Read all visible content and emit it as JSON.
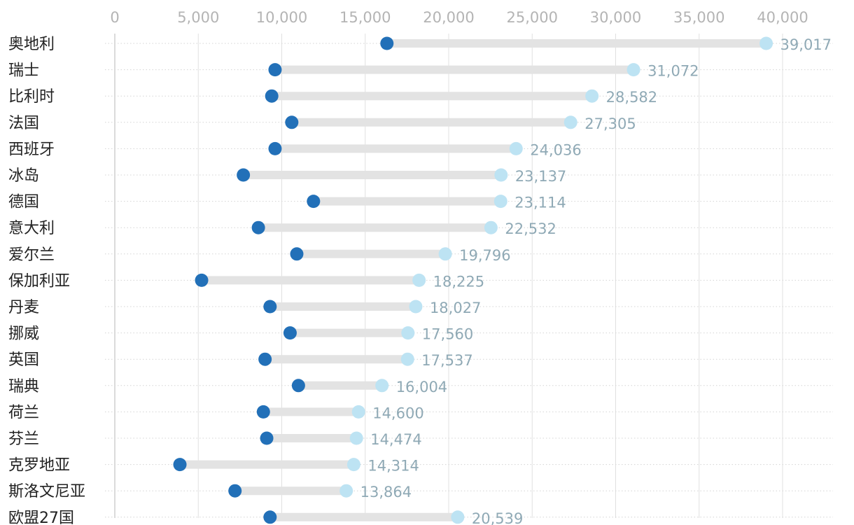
{
  "chart_data": {
    "type": "dumbbell",
    "title": "",
    "xlabel": "",
    "ylabel": "",
    "xlim": [
      0,
      40000
    ],
    "x_ticks": [
      0,
      5000,
      10000,
      15000,
      20000,
      25000,
      30000,
      35000,
      40000
    ],
    "x_tick_labels": [
      "0",
      "5,000",
      "10,000",
      "15,000",
      "20,000",
      "25,000",
      "30,000",
      "35,000",
      "40,000"
    ],
    "grid": true,
    "legend": "none",
    "colors": {
      "start_dot": "#2270b8",
      "end_dot": "#bde3f3",
      "connector": "#e3e3e3",
      "value_label": "#8fa9b5",
      "gridline": "#e0e0e0",
      "row_guide": "#d4d4d4",
      "axis_line": "#cfcfcf",
      "category_label": "#222222",
      "tick_label": "#b4b4b4"
    },
    "series": [
      {
        "name": "start",
        "values": [
          16300,
          9600,
          9400,
          10600,
          9600,
          7700,
          11900,
          8600,
          10900,
          5200,
          9300,
          10500,
          9000,
          11000,
          8900,
          9100,
          3900,
          7200,
          9300
        ]
      },
      {
        "name": "end",
        "values": [
          39017,
          31072,
          28582,
          27305,
          24036,
          23137,
          23114,
          22532,
          19796,
          18225,
          18027,
          17560,
          17537,
          16004,
          14600,
          14474,
          14314,
          13864,
          20539
        ]
      }
    ],
    "categories": [
      {
        "label": "奥地利",
        "value_label": "39,017"
      },
      {
        "label": "瑞士",
        "value_label": "31,072"
      },
      {
        "label": "比利时",
        "value_label": "28,582"
      },
      {
        "label": "法国",
        "value_label": "27,305"
      },
      {
        "label": "西班牙",
        "value_label": "24,036"
      },
      {
        "label": "冰岛",
        "value_label": "23,137"
      },
      {
        "label": "德国",
        "value_label": "23,114"
      },
      {
        "label": "意大利",
        "value_label": "22,532"
      },
      {
        "label": "爱尔兰",
        "value_label": "19,796"
      },
      {
        "label": "保加利亚",
        "value_label": "18,225"
      },
      {
        "label": "丹麦",
        "value_label": "18,027"
      },
      {
        "label": "挪威",
        "value_label": "17,560"
      },
      {
        "label": "英国",
        "value_label": "17,537"
      },
      {
        "label": "瑞典",
        "value_label": "16,004"
      },
      {
        "label": "荷兰",
        "value_label": "14,600"
      },
      {
        "label": "芬兰",
        "value_label": "14,474"
      },
      {
        "label": "克罗地亚",
        "value_label": "14,314"
      },
      {
        "label": "斯洛文尼亚",
        "value_label": "13,864"
      },
      {
        "label": "欧盟27国",
        "value_label": "20,539"
      }
    ]
  }
}
